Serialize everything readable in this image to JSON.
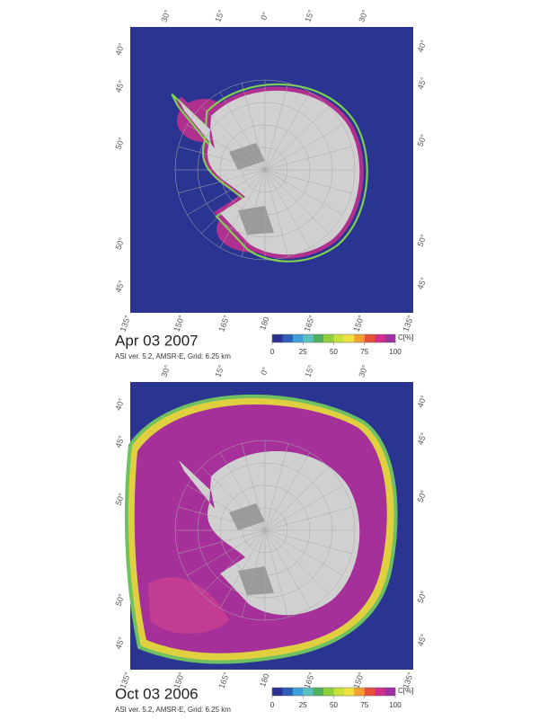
{
  "panels": [
    {
      "date": "Apr 03 2007",
      "caption": "ASI ver. 5.2,  AMSR-E,  Grid: 6.25 km",
      "top_labels": [
        "30°",
        "15°",
        "0°",
        "15°",
        "30°"
      ],
      "left_labels": [
        "40°",
        "45°",
        "50°",
        "50°",
        "45°"
      ],
      "right_labels": [
        "40°",
        "45°",
        "50°",
        "50°",
        "45°"
      ],
      "bottom_labels": [
        "135°",
        "150°",
        "165°",
        "180",
        "165°",
        "150°",
        "135°"
      ]
    },
    {
      "date": "Oct 03 2006",
      "caption": "ASI ver. 5.2,  AMSR-E,  Grid: 6.25 km",
      "top_labels": [
        "30°",
        "15°",
        "0°",
        "15°",
        "30°"
      ],
      "left_labels": [
        "40°",
        "45°",
        "50°",
        "50°",
        "45°"
      ],
      "right_labels": [
        "40°",
        "45°",
        "50°",
        "50°",
        "45°"
      ],
      "bottom_labels": [
        "135°",
        "150°",
        "165°",
        "180",
        "165°",
        "150°",
        "135°"
      ]
    }
  ],
  "colorbar": {
    "unit": "C[%]",
    "ticks": [
      0,
      25,
      50,
      75,
      100
    ],
    "colors": [
      "#2b2f8f",
      "#2c5fb8",
      "#3f9fd8",
      "#5cc0c0",
      "#4fb060",
      "#8fcf3f",
      "#c8e03a",
      "#f0e040",
      "#f5a030",
      "#e8503a",
      "#d0308a",
      "#a030a0"
    ]
  }
}
